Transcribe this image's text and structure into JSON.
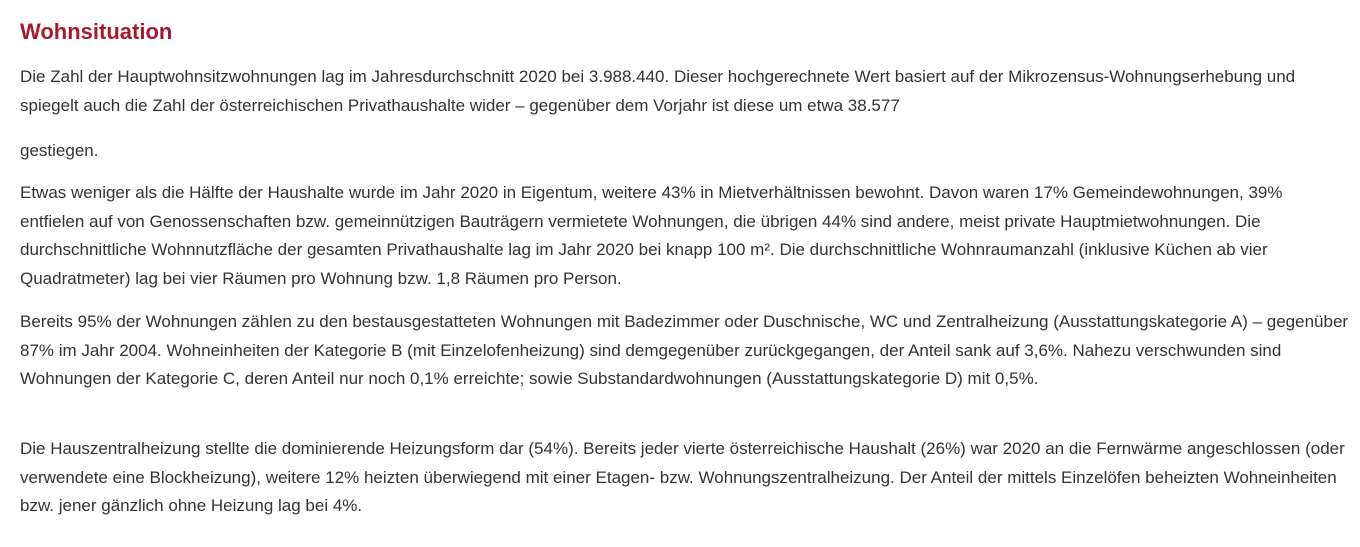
{
  "section": {
    "title": "Wohnsituation",
    "paragraphs": [
      "Die Zahl der Hauptwohnsitzwohnungen lag im Jahresdurchschnitt 2020 bei 3.988.440. Dieser hochgerechnete Wert basiert auf der Mikrozensus-Wohnungserhebung und spiegelt auch die Zahl der österreichischen Privathaushalte wider – gegenüber dem Vorjahr ist diese um etwa 38.577",
      "gestiegen.",
      "Etwas weniger als die Hälfte der Haushalte wurde im Jahr 2020 in Eigentum, weitere 43% in Mietverhältnissen bewohnt. Davon waren 17% Gemeindewohnungen, 39% entfielen auf von Genossenschaften bzw. gemeinnützigen Bauträgern vermietete Wohnungen, die übrigen 44% sind andere, meist private Hauptmietwohnungen. Die durchschnittliche Wohnnutzfläche der gesamten Privathaushalte lag im Jahr 2020 bei knapp 100 m². Die durchschnittliche Wohnraumanzahl (inklusive Küchen ab vier Quadratmeter) lag bei vier Räumen pro Wohnung bzw. 1,8 Räumen pro Person.",
      "Bereits 95% der Wohnungen zählen zu den bestausgestatteten Wohnungen mit Badezimmer oder Duschnische, WC und Zentralheizung (Ausstattungskategorie A) – gegenüber 87% im Jahr 2004. Wohneinheiten der Kategorie B (mit Einzelofenheizung) sind demgegenüber zurückgegangen, der Anteil sank auf 3,6%. Nahezu verschwunden sind Wohnungen der Kategorie C, deren Anteil nur noch 0,1% erreichte; sowie Substandardwohnungen (Ausstattungskategorie D) mit 0,5%.",
      "Die Hauszentralheizung stellte die dominierende Heizungsform dar (54%). Bereits jeder vierte österreichische Haushalt (26%) war 2020 an die Fernwärme angeschlossen (oder verwendete eine Blockheizung), weitere 12% heizten überwiegend mit einer Etagen- bzw. Wohnungszentralheizung. Der Anteil der mittels Einzelöfen beheizten Wohneinheiten bzw. jener gänzlich ohne Heizung lag bei 4%."
    ]
  },
  "colors": {
    "heading": "#a6192e",
    "text": "#333333",
    "background": "#ffffff"
  }
}
